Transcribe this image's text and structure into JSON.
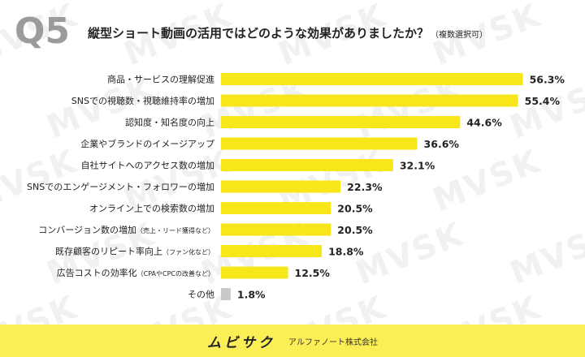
{
  "header": {
    "question_number": "Q5",
    "title": "縦型ショート動画の活用ではどのような効果がありましたか？",
    "title_note": "（複数選択可）"
  },
  "watermark": "MVSK",
  "footer": {
    "brand": "ムビサク",
    "company": "アルファノート株式会社"
  },
  "colors": {
    "bar": "#f7e619",
    "bar_other": "#c8c8c8",
    "footer_bg": "#fbef55"
  },
  "chart_data": {
    "type": "bar",
    "orientation": "horizontal",
    "categories": [
      "商品・サービスの理解促進",
      "SNSでの視聴数・視聴維持率の増加",
      "認知度・知名度の向上",
      "企業やブランドのイメージアップ",
      "自社サイトへのアクセス数の増加",
      "SNSでのエンゲージメント・フォロワーの増加",
      "オンライン上での検索数の増加",
      "コンバージョン数の増加",
      "既存顧客のリピート率向上",
      "広告コストの効率化",
      "その他"
    ],
    "category_notes": [
      "",
      "",
      "",
      "",
      "",
      "",
      "",
      "（売上・リード獲得など）",
      "（ファン化など）",
      "（CPAやCPCの改善など）",
      ""
    ],
    "values": [
      56.3,
      55.4,
      44.6,
      36.6,
      32.1,
      22.3,
      20.5,
      20.5,
      18.8,
      12.5,
      1.8
    ],
    "value_labels": [
      "56.3%",
      "55.4%",
      "44.6%",
      "36.6%",
      "32.1%",
      "22.3%",
      "20.5%",
      "20.5%",
      "18.8%",
      "12.5%",
      "1.8%"
    ],
    "xlim": [
      0,
      60
    ]
  }
}
